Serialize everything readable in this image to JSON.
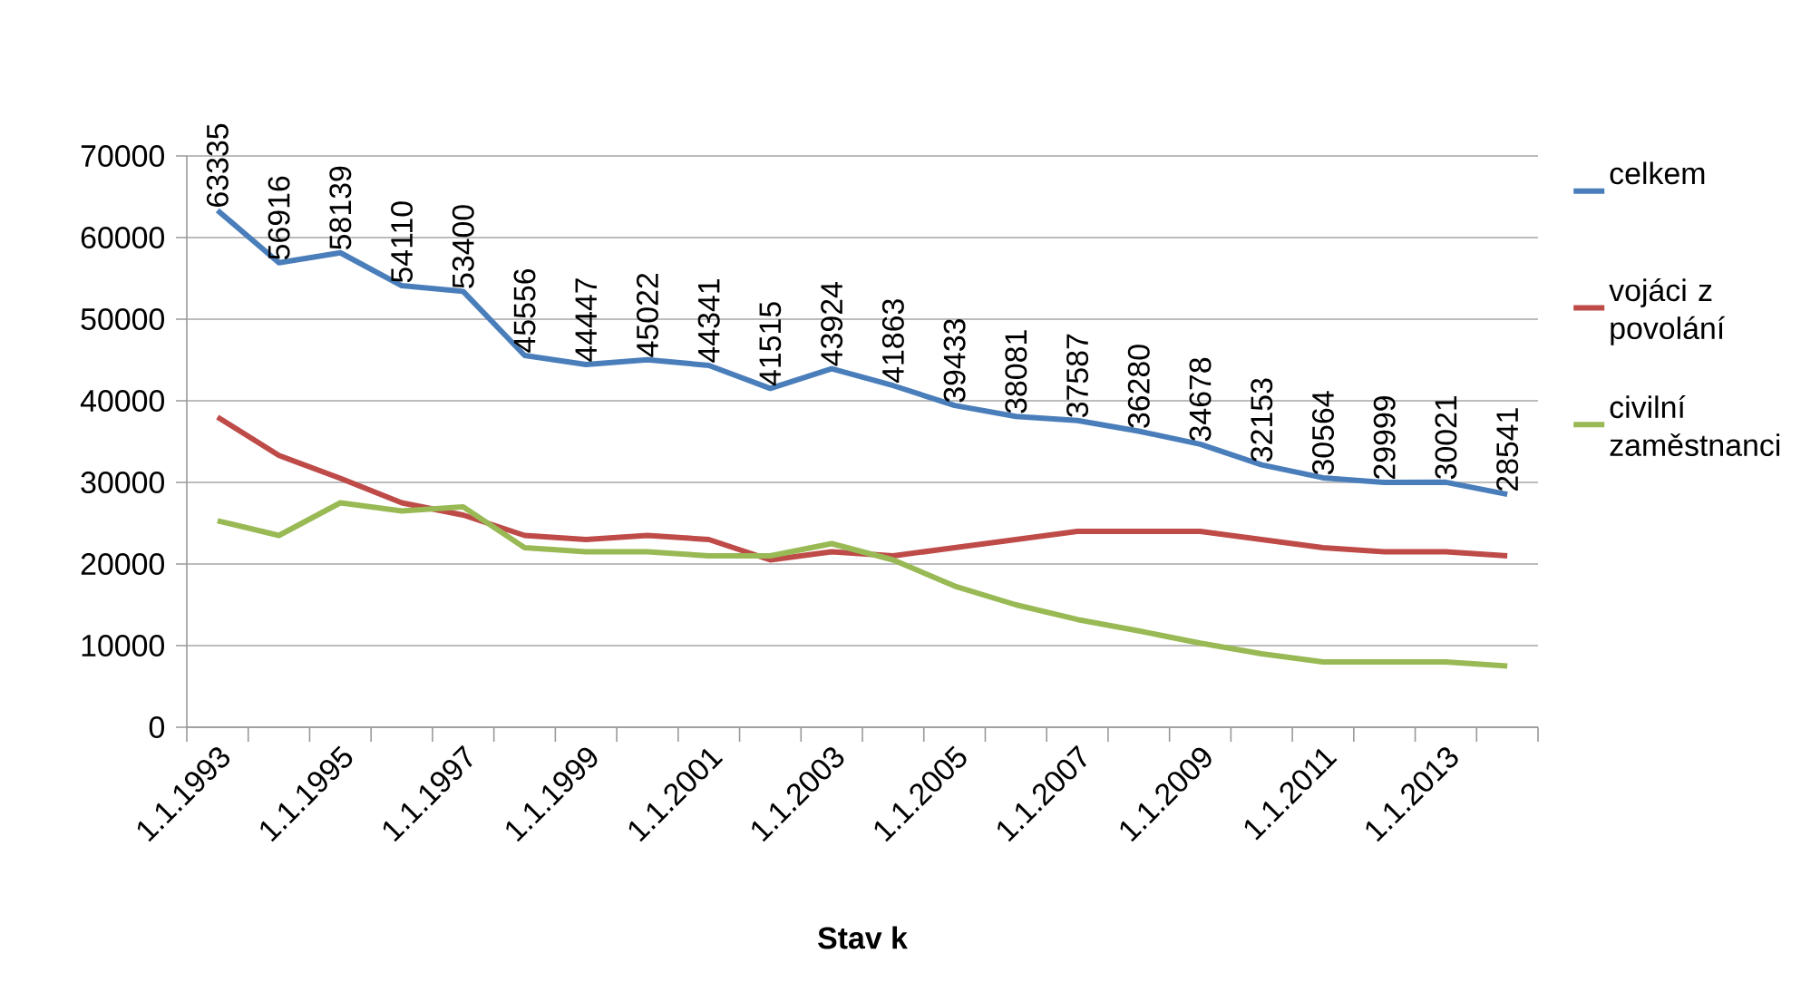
{
  "chart_data": {
    "type": "line",
    "xlabel": "Stav k",
    "categories": [
      "1.1.1993",
      null,
      "1.1.1995",
      null,
      "1.1.1997",
      null,
      "1.1.1999",
      null,
      "1.1.2001",
      null,
      "1.1.2003",
      null,
      "1.1.2005",
      null,
      "1.1.2007",
      null,
      "1.1.2009",
      null,
      "1.1.2011",
      null,
      "1.1.2013",
      null
    ],
    "series": [
      {
        "name": "celkem",
        "color": "#4a7ebb",
        "data_labels": true,
        "values": [
          63335,
          56916,
          58139,
          54110,
          53400,
          45556,
          44447,
          45022,
          44341,
          41515,
          43924,
          41863,
          39433,
          38081,
          37587,
          36280,
          34678,
          32153,
          30564,
          29999,
          30021,
          28541
        ]
      },
      {
        "name": "vojáci z povolání",
        "color": "#be4b48",
        "values": [
          38000,
          33300,
          30500,
          27500,
          26000,
          23500,
          23000,
          23500,
          23000,
          20500,
          21500,
          21000,
          22000,
          23000,
          24000,
          24000,
          24000,
          23000,
          22000,
          21500,
          21500,
          21000
        ]
      },
      {
        "name": "civilní zaměstnanci",
        "color": "#98b954",
        "values": [
          25300,
          23500,
          27500,
          26500,
          27000,
          22000,
          21500,
          21500,
          21000,
          21000,
          22500,
          20500,
          17300,
          15000,
          13200,
          11800,
          10300,
          9000,
          8000,
          8000,
          8000,
          7500
        ]
      }
    ],
    "ylim": [
      0,
      70000
    ],
    "yticks": [
      0,
      10000,
      20000,
      30000,
      40000,
      50000,
      60000,
      70000
    ],
    "grid": "y",
    "legend": "right",
    "marker": "none",
    "line_style": "solid"
  }
}
